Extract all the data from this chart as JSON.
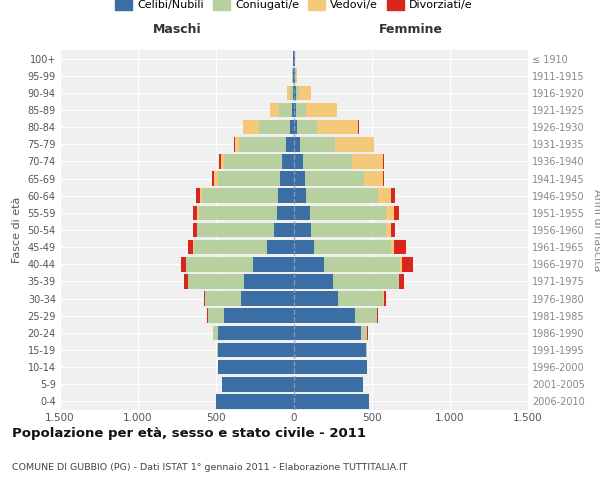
{
  "age_groups": [
    "0-4",
    "5-9",
    "10-14",
    "15-19",
    "20-24",
    "25-29",
    "30-34",
    "35-39",
    "40-44",
    "45-49",
    "50-54",
    "55-59",
    "60-64",
    "65-69",
    "70-74",
    "75-79",
    "80-84",
    "85-89",
    "90-94",
    "95-99",
    "100+"
  ],
  "birth_years": [
    "2006-2010",
    "2001-2005",
    "1996-2000",
    "1991-1995",
    "1986-1990",
    "1981-1985",
    "1976-1980",
    "1971-1975",
    "1966-1970",
    "1961-1965",
    "1956-1960",
    "1951-1955",
    "1946-1950",
    "1941-1945",
    "1936-1940",
    "1931-1935",
    "1926-1930",
    "1921-1925",
    "1916-1920",
    "1911-1915",
    "≤ 1910"
  ],
  "males": {
    "celibi": [
      500,
      460,
      490,
      490,
      490,
      450,
      340,
      320,
      260,
      170,
      130,
      110,
      100,
      90,
      80,
      50,
      25,
      15,
      8,
      5,
      5
    ],
    "coniugati": [
      0,
      0,
      0,
      5,
      30,
      100,
      230,
      360,
      430,
      470,
      490,
      500,
      490,
      400,
      370,
      300,
      200,
      80,
      20,
      5,
      2
    ],
    "vedovi": [
      0,
      0,
      0,
      0,
      0,
      0,
      0,
      2,
      2,
      5,
      5,
      10,
      10,
      20,
      20,
      30,
      100,
      60,
      20,
      2,
      0
    ],
    "divorziati": [
      0,
      0,
      0,
      0,
      2,
      5,
      10,
      25,
      35,
      35,
      25,
      30,
      30,
      15,
      10,
      5,
      5,
      0,
      0,
      0,
      0
    ]
  },
  "females": {
    "nubili": [
      480,
      440,
      470,
      460,
      430,
      390,
      280,
      250,
      190,
      130,
      110,
      100,
      80,
      70,
      60,
      40,
      20,
      15,
      10,
      5,
      5
    ],
    "coniugate": [
      0,
      0,
      0,
      5,
      40,
      140,
      290,
      420,
      490,
      490,
      480,
      490,
      460,
      380,
      310,
      220,
      130,
      60,
      20,
      5,
      2
    ],
    "vedove": [
      0,
      0,
      0,
      0,
      0,
      2,
      5,
      5,
      10,
      20,
      30,
      50,
      80,
      120,
      200,
      250,
      260,
      200,
      80,
      10,
      2
    ],
    "divorziate": [
      0,
      0,
      0,
      0,
      2,
      5,
      15,
      30,
      70,
      80,
      25,
      30,
      30,
      10,
      10,
      5,
      5,
      0,
      0,
      0,
      0
    ]
  },
  "colors": {
    "celibi_nubili": "#3a6ea5",
    "coniugati": "#b8cfa0",
    "vedovi": "#f5c97a",
    "divorziati": "#d9261c"
  },
  "xlim": 1500,
  "title": "Popolazione per età, sesso e stato civile - 2011",
  "subtitle": "COMUNE DI GUBBIO (PG) - Dati ISTAT 1° gennaio 2011 - Elaborazione TUTTITALIA.IT",
  "xlabel_left": "Maschi",
  "xlabel_right": "Femmine",
  "ylabel_left": "Fasce di età",
  "ylabel_right": "Anni di nascita",
  "xticks": [
    -1500,
    -1000,
    -500,
    0,
    500,
    1000,
    1500
  ],
  "xtick_labels": [
    "1.500",
    "1.000",
    "500",
    "0",
    "500",
    "1.000",
    "1.500"
  ],
  "background_color": "#ffffff",
  "plot_bg_color": "#f0f0f0",
  "grid_color": "#ffffff"
}
